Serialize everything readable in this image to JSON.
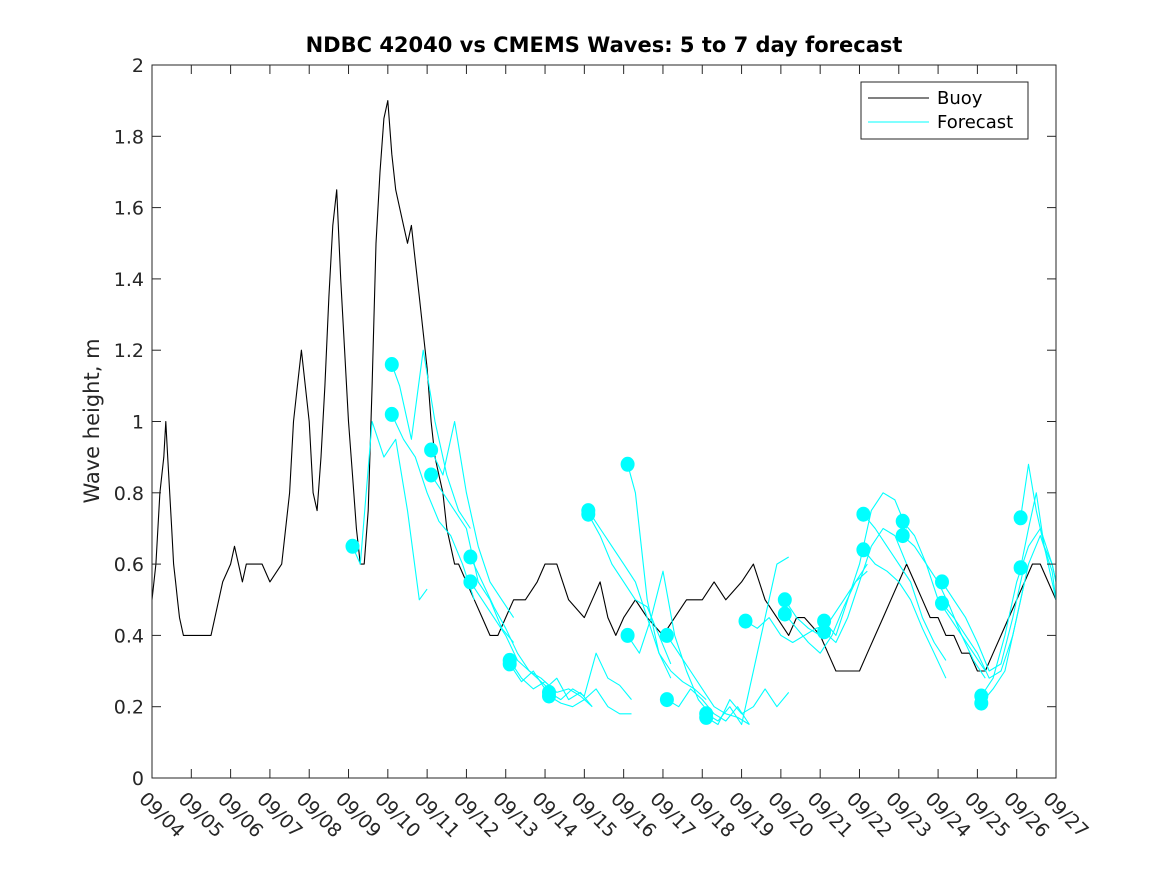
{
  "chart_data": {
    "type": "line",
    "title": "NDBC 42040 vs CMEMS Waves: 5 to 7 day forecast",
    "xlabel": "",
    "ylabel": "Wave height, m",
    "xlim": [
      0,
      23
    ],
    "ylim": [
      0,
      2
    ],
    "yticks": [
      0,
      0.2,
      0.4,
      0.6,
      0.8,
      1,
      1.2,
      1.4,
      1.6,
      1.8,
      2
    ],
    "ytick_labels": [
      "0",
      "0.2",
      "0.4",
      "0.6",
      "0.8",
      "1",
      "1.2",
      "1.4",
      "1.6",
      "1.8",
      "2"
    ],
    "xtick_labels": [
      "09/04",
      "09/05",
      "09/06",
      "09/07",
      "09/08",
      "09/09",
      "09/10",
      "09/11",
      "09/12",
      "09/13",
      "09/14",
      "09/15",
      "09/16",
      "09/17",
      "09/18",
      "09/19",
      "09/20",
      "09/21",
      "09/22",
      "09/23",
      "09/24",
      "09/25",
      "09/26",
      "09/27"
    ],
    "legend": {
      "position": "top-right",
      "entries": [
        "Buoy",
        "Forecast"
      ]
    },
    "colors": {
      "buoy": "#000000",
      "forecast": "#00ffff",
      "axes": "#262626"
    },
    "buoy": {
      "name": "Buoy",
      "x": [
        0,
        0.1,
        0.2,
        0.3,
        0.35,
        0.4,
        0.45,
        0.5,
        0.55,
        0.6,
        0.65,
        0.7,
        0.8,
        0.9,
        1,
        1.2,
        1.5,
        1.6,
        1.7,
        1.8,
        2,
        2.1,
        2.2,
        2.3,
        2.4,
        2.6,
        2.8,
        3,
        3.3,
        3.5,
        3.6,
        3.7,
        3.8,
        4,
        4.1,
        4.2,
        4.3,
        4.4,
        4.5,
        4.6,
        4.7,
        4.8,
        4.9,
        5,
        5.1,
        5.2,
        5.3,
        5.4,
        5.5,
        5.6,
        5.7,
        5.8,
        5.9,
        6,
        6.1,
        6.2,
        6.3,
        6.4,
        6.5,
        6.6,
        6.7,
        6.8,
        6.9,
        7,
        7.1,
        7.2,
        7.3,
        7.4,
        7.5,
        7.6,
        7.7,
        7.8,
        8,
        8.2,
        8.4,
        8.6,
        8.8,
        9,
        9.2,
        9.5,
        9.8,
        10,
        10.3,
        10.6,
        11,
        11.2,
        11.4,
        11.6,
        11.8,
        12,
        12.3,
        12.6,
        13,
        13.3,
        13.6,
        14,
        14.3,
        14.6,
        15,
        15.3,
        15.6,
        15.9,
        16.2,
        16.4,
        16.6,
        17,
        17.2,
        17.4,
        17.6,
        17.8,
        18,
        18.2,
        18.4,
        18.6,
        18.8,
        19,
        19.2,
        19.4,
        19.6,
        19.8,
        20,
        20.2,
        20.4,
        20.6,
        20.8,
        21,
        21.2,
        21.4,
        21.6,
        21.8,
        22,
        22.2,
        22.4,
        22.6,
        22.8,
        23
      ],
      "y": [
        0.5,
        0.6,
        0.8,
        0.9,
        1.0,
        0.9,
        0.8,
        0.7,
        0.6,
        0.55,
        0.5,
        0.45,
        0.4,
        0.4,
        0.4,
        0.4,
        0.4,
        0.45,
        0.5,
        0.55,
        0.6,
        0.65,
        0.6,
        0.55,
        0.6,
        0.6,
        0.6,
        0.55,
        0.6,
        0.8,
        1.0,
        1.1,
        1.2,
        1.0,
        0.8,
        0.75,
        0.9,
        1.1,
        1.35,
        1.55,
        1.65,
        1.4,
        1.2,
        1.0,
        0.85,
        0.7,
        0.6,
        0.6,
        0.75,
        1.1,
        1.5,
        1.7,
        1.85,
        1.9,
        1.75,
        1.65,
        1.6,
        1.55,
        1.5,
        1.55,
        1.45,
        1.35,
        1.25,
        1.15,
        1.0,
        0.9,
        0.85,
        0.8,
        0.7,
        0.65,
        0.6,
        0.6,
        0.55,
        0.5,
        0.45,
        0.4,
        0.4,
        0.45,
        0.5,
        0.5,
        0.55,
        0.6,
        0.6,
        0.5,
        0.45,
        0.5,
        0.55,
        0.45,
        0.4,
        0.45,
        0.5,
        0.45,
        0.4,
        0.45,
        0.5,
        0.5,
        0.55,
        0.5,
        0.55,
        0.6,
        0.5,
        0.45,
        0.4,
        0.45,
        0.45,
        0.4,
        0.35,
        0.3,
        0.3,
        0.3,
        0.3,
        0.35,
        0.4,
        0.45,
        0.5,
        0.55,
        0.6,
        0.55,
        0.5,
        0.45,
        0.45,
        0.4,
        0.4,
        0.35,
        0.35,
        0.3,
        0.3,
        0.35,
        0.4,
        0.45,
        0.5,
        0.55,
        0.6,
        0.6,
        0.55,
        0.5
      ]
    },
    "forecast": {
      "name": "Forecast",
      "runs": [
        {
          "x": [
            5.1,
            5.3,
            5.6,
            5.9,
            6.2,
            6.5,
            6.8,
            7.0
          ],
          "y": [
            0.65,
            0.6,
            1.0,
            0.9,
            0.95,
            0.75,
            0.5,
            0.53
          ]
        },
        {
          "x": [
            6.1,
            6.3,
            6.6,
            6.9,
            7.2,
            7.5,
            7.8,
            8.1
          ],
          "y": [
            1.16,
            1.1,
            0.95,
            1.2,
            1.0,
            0.85,
            0.75,
            0.7
          ]
        },
        {
          "x": [
            6.1,
            6.4,
            6.7,
            7.0,
            7.3,
            7.6,
            7.9,
            8.2
          ],
          "y": [
            1.02,
            0.95,
            0.9,
            0.8,
            0.72,
            0.68,
            0.6,
            0.5
          ]
        },
        {
          "x": [
            7.1,
            7.4,
            7.7,
            8.0,
            8.3,
            8.6,
            8.9,
            9.2
          ],
          "y": [
            0.92,
            0.85,
            1.0,
            0.8,
            0.65,
            0.55,
            0.5,
            0.45
          ]
        },
        {
          "x": [
            7.1,
            7.4,
            7.7,
            8.0,
            8.3,
            8.6,
            8.9,
            9.2
          ],
          "y": [
            0.85,
            0.8,
            0.75,
            0.7,
            0.55,
            0.5,
            0.42,
            0.38
          ]
        },
        {
          "x": [
            8.1,
            8.4,
            8.7,
            9.0,
            9.3,
            9.6,
            9.9,
            10.2
          ],
          "y": [
            0.62,
            0.55,
            0.48,
            0.42,
            0.35,
            0.3,
            0.28,
            0.25
          ]
        },
        {
          "x": [
            8.1,
            8.4,
            8.7,
            9.0,
            9.3,
            9.6,
            9.9,
            10.2
          ],
          "y": [
            0.55,
            0.5,
            0.45,
            0.4,
            0.33,
            0.3,
            0.27,
            0.24
          ]
        },
        {
          "x": [
            9.1,
            9.4,
            9.7,
            10.0,
            10.3,
            10.6,
            10.9,
            11.2
          ],
          "y": [
            0.33,
            0.28,
            0.25,
            0.27,
            0.24,
            0.25,
            0.23,
            0.2
          ]
        },
        {
          "x": [
            9.1,
            9.4,
            9.7,
            10.0,
            10.3,
            10.6,
            10.9,
            11.2
          ],
          "y": [
            0.32,
            0.27,
            0.3,
            0.25,
            0.28,
            0.22,
            0.24,
            0.2
          ]
        },
        {
          "x": [
            10.1,
            10.4,
            10.7,
            11.0,
            11.3,
            11.6,
            11.9,
            12.2
          ],
          "y": [
            0.24,
            0.22,
            0.25,
            0.23,
            0.35,
            0.28,
            0.26,
            0.22
          ]
        },
        {
          "x": [
            10.1,
            10.4,
            10.7,
            11.0,
            11.3,
            11.6,
            11.9,
            12.2
          ],
          "y": [
            0.23,
            0.21,
            0.2,
            0.22,
            0.25,
            0.2,
            0.18,
            0.18
          ]
        },
        {
          "x": [
            11.1,
            11.4,
            11.7,
            12.0,
            12.3,
            12.6,
            12.9,
            13.2
          ],
          "y": [
            0.75,
            0.7,
            0.65,
            0.6,
            0.55,
            0.45,
            0.35,
            0.28
          ]
        },
        {
          "x": [
            11.1,
            11.4,
            11.7,
            12.0,
            12.3,
            12.6,
            12.9,
            13.2
          ],
          "y": [
            0.74,
            0.68,
            0.6,
            0.55,
            0.5,
            0.48,
            0.4,
            0.32
          ]
        },
        {
          "x": [
            12.1,
            12.3,
            12.6,
            12.9,
            13.2,
            13.5,
            13.8,
            14.1
          ],
          "y": [
            0.88,
            0.8,
            0.5,
            0.35,
            0.3,
            0.27,
            0.25,
            0.22
          ]
        },
        {
          "x": [
            12.1,
            12.4,
            12.7,
            13.0,
            13.3,
            13.6,
            13.9,
            14.2
          ],
          "y": [
            0.4,
            0.35,
            0.45,
            0.58,
            0.4,
            0.3,
            0.22,
            0.18
          ]
        },
        {
          "x": [
            13.1,
            13.4,
            13.7,
            14.0,
            14.3,
            14.6,
            14.9,
            15.2
          ],
          "y": [
            0.4,
            0.35,
            0.3,
            0.25,
            0.2,
            0.18,
            0.17,
            0.15
          ]
        },
        {
          "x": [
            13.1,
            13.4,
            13.7,
            14.0,
            14.3,
            14.6,
            14.9,
            15.2
          ],
          "y": [
            0.22,
            0.2,
            0.25,
            0.22,
            0.18,
            0.16,
            0.2,
            0.15
          ]
        },
        {
          "x": [
            14.1,
            14.4,
            14.7,
            15.0,
            15.3,
            15.6,
            15.9,
            16.2
          ],
          "y": [
            0.18,
            0.16,
            0.2,
            0.15,
            0.3,
            0.45,
            0.6,
            0.62
          ]
        },
        {
          "x": [
            14.1,
            14.4,
            14.7,
            15.0,
            15.3,
            15.6,
            15.9,
            16.2
          ],
          "y": [
            0.17,
            0.15,
            0.22,
            0.18,
            0.2,
            0.25,
            0.2,
            0.24
          ]
        },
        {
          "x": [
            15.1,
            15.4,
            15.7,
            16.0,
            16.3,
            16.6,
            16.9,
            17.2
          ],
          "y": [
            0.44,
            0.42,
            0.45,
            0.4,
            0.38,
            0.4,
            0.42,
            0.43
          ]
        },
        {
          "x": [
            16.1,
            16.4,
            16.7,
            17.0,
            17.3,
            17.6,
            17.9,
            18.2
          ],
          "y": [
            0.5,
            0.45,
            0.42,
            0.4,
            0.45,
            0.5,
            0.55,
            0.6
          ]
        },
        {
          "x": [
            16.1,
            16.4,
            16.7,
            17.0,
            17.3,
            17.6,
            17.9,
            18.2
          ],
          "y": [
            0.46,
            0.42,
            0.38,
            0.35,
            0.4,
            0.48,
            0.55,
            0.58
          ]
        },
        {
          "x": [
            17.1,
            17.4,
            17.7,
            18.0,
            18.3,
            18.6,
            18.9,
            19.2
          ],
          "y": [
            0.44,
            0.4,
            0.5,
            0.6,
            0.75,
            0.8,
            0.78,
            0.7
          ]
        },
        {
          "x": [
            17.1,
            17.4,
            17.7,
            18.0,
            18.3,
            18.6,
            18.9,
            19.2
          ],
          "y": [
            0.41,
            0.38,
            0.45,
            0.55,
            0.65,
            0.7,
            0.68,
            0.6
          ]
        },
        {
          "x": [
            18.1,
            18.4,
            18.7,
            19.0,
            19.3,
            19.6,
            19.9,
            20.2
          ],
          "y": [
            0.74,
            0.7,
            0.65,
            0.6,
            0.55,
            0.45,
            0.38,
            0.33
          ]
        },
        {
          "x": [
            18.1,
            18.4,
            18.7,
            19.0,
            19.3,
            19.6,
            19.9,
            20.2
          ],
          "y": [
            0.64,
            0.6,
            0.58,
            0.55,
            0.5,
            0.42,
            0.35,
            0.28
          ]
        },
        {
          "x": [
            19.1,
            19.4,
            19.7,
            20.0,
            20.3,
            20.6,
            20.9,
            21.2
          ],
          "y": [
            0.72,
            0.68,
            0.6,
            0.5,
            0.45,
            0.4,
            0.35,
            0.3
          ]
        },
        {
          "x": [
            19.1,
            19.4,
            19.7,
            20.0,
            20.3,
            20.6,
            20.9,
            21.2
          ],
          "y": [
            0.68,
            0.65,
            0.6,
            0.55,
            0.48,
            0.4,
            0.33,
            0.28
          ]
        },
        {
          "x": [
            20.1,
            20.4,
            20.7,
            21.0,
            21.3,
            21.6,
            21.9,
            22.2
          ],
          "y": [
            0.55,
            0.5,
            0.45,
            0.38,
            0.3,
            0.32,
            0.45,
            0.6
          ]
        },
        {
          "x": [
            20.1,
            20.4,
            20.7,
            21.0,
            21.3,
            21.6,
            21.9,
            22.2
          ],
          "y": [
            0.49,
            0.45,
            0.4,
            0.35,
            0.28,
            0.3,
            0.4,
            0.55
          ]
        },
        {
          "x": [
            21.1,
            21.4,
            21.7,
            22.0,
            22.3,
            22.6,
            22.9,
            23.0
          ],
          "y": [
            0.23,
            0.28,
            0.4,
            0.55,
            0.65,
            0.7,
            0.6,
            0.55
          ]
        },
        {
          "x": [
            21.1,
            21.4,
            21.7,
            22.0,
            22.3,
            22.6,
            22.9,
            23.0
          ],
          "y": [
            0.21,
            0.25,
            0.3,
            0.45,
            0.6,
            0.68,
            0.58,
            0.5
          ]
        },
        {
          "x": [
            22.1,
            22.3,
            22.5,
            22.7,
            22.9,
            23.0
          ],
          "y": [
            0.73,
            0.88,
            0.75,
            0.65,
            0.6,
            0.55
          ]
        },
        {
          "x": [
            22.1,
            22.3,
            22.5,
            22.7,
            22.9,
            23.0
          ],
          "y": [
            0.59,
            0.7,
            0.8,
            0.65,
            0.55,
            0.5
          ]
        }
      ]
    }
  }
}
